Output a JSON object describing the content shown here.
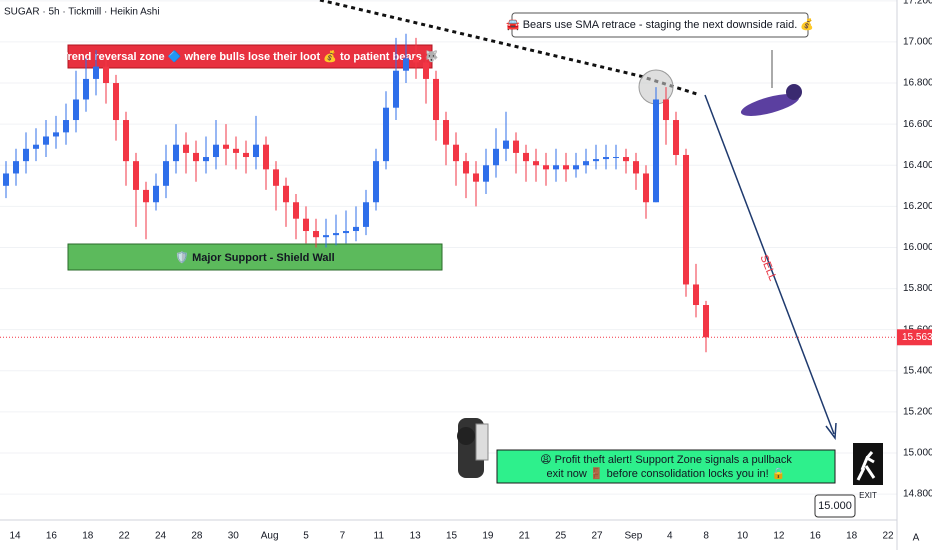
{
  "chart_data": {
    "type": "candlestick",
    "title": "SUGAR · 5h · Tickmill · Heikin Ashi",
    "up_color": "#2f6fea",
    "down_color": "#f23645",
    "ylim": [
      14.674,
      17.204
    ],
    "yticks": [
      {
        "value": 14.8,
        "label": "14.800"
      },
      {
        "value": 15,
        "label": "15.000"
      },
      {
        "value": 15.2,
        "label": "15.200"
      },
      {
        "value": 15.4,
        "label": "15.400"
      },
      {
        "value": 15.6,
        "label": "15.600"
      },
      {
        "value": 15.8,
        "label": "15.800"
      },
      {
        "value": 16,
        "label": "16.000"
      },
      {
        "value": 16.2,
        "label": "16.200"
      },
      {
        "value": 16.4,
        "label": "16.400"
      },
      {
        "value": 16.6,
        "label": "16.600"
      },
      {
        "value": 16.8,
        "label": "16.800"
      },
      {
        "value": 17,
        "label": "17.000"
      },
      {
        "value": 17.2,
        "label": "17.200"
      }
    ],
    "date_labels": [
      "14",
      "16",
      "18",
      "22",
      "24",
      "28",
      "30",
      "Aug",
      "5",
      "7",
      "11",
      "13",
      "15",
      "19",
      "21",
      "25",
      "27",
      "Sep",
      "4",
      "8",
      "10",
      "12",
      "16",
      "18",
      "22"
    ],
    "candles": [
      [
        16.3,
        16.42,
        16.24,
        16.36
      ],
      [
        16.36,
        16.48,
        16.3,
        16.42
      ],
      [
        16.42,
        16.56,
        16.36,
        16.48
      ],
      [
        16.48,
        16.58,
        16.42,
        16.5
      ],
      [
        16.5,
        16.62,
        16.44,
        16.54
      ],
      [
        16.54,
        16.64,
        16.48,
        16.56
      ],
      [
        16.56,
        16.7,
        16.5,
        16.62
      ],
      [
        16.62,
        16.86,
        16.56,
        16.72
      ],
      [
        16.72,
        16.92,
        16.66,
        16.82
      ],
      [
        16.82,
        16.96,
        16.74,
        16.88
      ],
      [
        16.88,
        16.92,
        16.7,
        16.8
      ],
      [
        16.8,
        16.84,
        16.52,
        16.62
      ],
      [
        16.62,
        16.66,
        16.3,
        16.42
      ],
      [
        16.42,
        16.46,
        16.1,
        16.28
      ],
      [
        16.28,
        16.32,
        16.04,
        16.22
      ],
      [
        16.22,
        16.36,
        16.18,
        16.3
      ],
      [
        16.3,
        16.5,
        16.24,
        16.42
      ],
      [
        16.42,
        16.6,
        16.36,
        16.5
      ],
      [
        16.5,
        16.56,
        16.36,
        16.46
      ],
      [
        16.46,
        16.52,
        16.32,
        16.42
      ],
      [
        16.42,
        16.54,
        16.36,
        16.44
      ],
      [
        16.44,
        16.62,
        16.38,
        16.5
      ],
      [
        16.5,
        16.6,
        16.4,
        16.48
      ],
      [
        16.48,
        16.54,
        16.38,
        16.46
      ],
      [
        16.46,
        16.52,
        16.36,
        16.44
      ],
      [
        16.44,
        16.64,
        16.38,
        16.5
      ],
      [
        16.5,
        16.54,
        16.28,
        16.38
      ],
      [
        16.38,
        16.42,
        16.18,
        16.3
      ],
      [
        16.3,
        16.34,
        16.1,
        16.22
      ],
      [
        16.22,
        16.26,
        16.04,
        16.14
      ],
      [
        16.14,
        16.2,
        16.02,
        16.08
      ],
      [
        16.08,
        16.14,
        16.0,
        16.05
      ],
      [
        16.05,
        16.14,
        16.0,
        16.06
      ],
      [
        16.06,
        16.16,
        16.01,
        16.07
      ],
      [
        16.07,
        16.18,
        16.02,
        16.08
      ],
      [
        16.08,
        16.2,
        16.03,
        16.1
      ],
      [
        16.1,
        16.28,
        16.06,
        16.22
      ],
      [
        16.22,
        16.48,
        16.18,
        16.42
      ],
      [
        16.42,
        16.76,
        16.38,
        16.68
      ],
      [
        16.68,
        17.02,
        16.62,
        16.86
      ],
      [
        16.86,
        17.04,
        16.8,
        16.92
      ],
      [
        16.92,
        17.02,
        16.82,
        16.9
      ],
      [
        16.9,
        16.96,
        16.7,
        16.82
      ],
      [
        16.82,
        16.86,
        16.52,
        16.62
      ],
      [
        16.62,
        16.66,
        16.4,
        16.5
      ],
      [
        16.5,
        16.56,
        16.3,
        16.42
      ],
      [
        16.42,
        16.46,
        16.24,
        16.36
      ],
      [
        16.36,
        16.42,
        16.2,
        16.32
      ],
      [
        16.32,
        16.48,
        16.26,
        16.4
      ],
      [
        16.4,
        16.58,
        16.34,
        16.48
      ],
      [
        16.48,
        16.66,
        16.42,
        16.52
      ],
      [
        16.52,
        16.56,
        16.36,
        16.46
      ],
      [
        16.46,
        16.5,
        16.32,
        16.42
      ],
      [
        16.42,
        16.48,
        16.32,
        16.4
      ],
      [
        16.4,
        16.46,
        16.3,
        16.38
      ],
      [
        16.38,
        16.48,
        16.32,
        16.4
      ],
      [
        16.4,
        16.46,
        16.32,
        16.38
      ],
      [
        16.38,
        16.46,
        16.34,
        16.4
      ],
      [
        16.4,
        16.48,
        16.36,
        16.42
      ],
      [
        16.42,
        16.5,
        16.38,
        16.43
      ],
      [
        16.43,
        16.5,
        16.38,
        16.44
      ],
      [
        16.44,
        16.5,
        16.38,
        16.44
      ],
      [
        16.44,
        16.48,
        16.36,
        16.42
      ],
      [
        16.42,
        16.46,
        16.28,
        16.36
      ],
      [
        16.36,
        16.4,
        16.14,
        16.22
      ],
      [
        16.22,
        16.78,
        16.22,
        16.72
      ],
      [
        16.72,
        16.78,
        16.5,
        16.62
      ],
      [
        16.62,
        16.66,
        16.4,
        16.45
      ],
      [
        16.45,
        16.48,
        15.76,
        15.82
      ],
      [
        15.82,
        15.92,
        15.66,
        15.72
      ],
      [
        15.72,
        15.74,
        15.49,
        15.563
      ]
    ],
    "last_price": 15.563,
    "target": {
      "value": 15,
      "label": "15.000"
    },
    "annotations": {
      "reversal_zone": "“Trend reversal zone 🔷 where bulls lose their loot 💰 to patient bears 🐺”",
      "support": "🛡️ Major Support - Shield Wall",
      "sma_note": "🚘 Bears use SMA retrace - staging the next downside raid. 💰",
      "alert_line1": "😩 Profit theft alert! Support Zone signals a pullback",
      "alert_line2": "exit now 🚪 before consolidation locks you in! 🔒",
      "sell": "SELL",
      "exit": "EXIT",
      "scale_mode": "A"
    }
  }
}
